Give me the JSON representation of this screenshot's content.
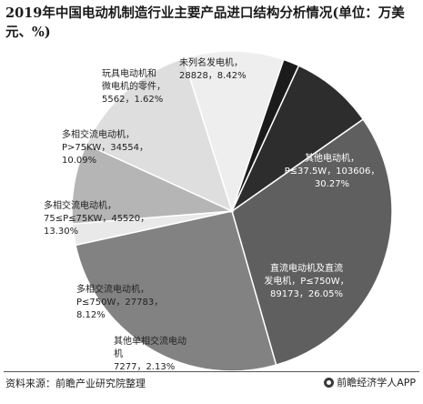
{
  "title": "2019年中国电动机制造行业主要产品进口结构分析情况(单位：万美元、%)",
  "chart_data": {
    "type": "pie",
    "title": "2019年中国电动机制造行业主要产品进口结构分析情况(单位：万美元、%)",
    "unit": "万美元、%",
    "slices": [
      {
        "label": [
          "其他电动机，",
          "P≤37.5W，103606，",
          "30.27%"
        ],
        "value": 103606,
        "percent": 30.27,
        "color": "#5f5f5f",
        "text_color": "#ffffff"
      },
      {
        "label": [
          "直流电动机及直流",
          "发电机，P≤750W，",
          "89173，26.05%"
        ],
        "value": 89173,
        "percent": 26.05,
        "color": "#828282",
        "text_color": "#ffffff"
      },
      {
        "label": [
          "其他单相交流电动",
          "机",
          "7277，2.13%"
        ],
        "value": 7277,
        "percent": 2.13,
        "color": "#e9e9e9",
        "text_color": "#222222"
      },
      {
        "label": [
          "多相交流电动机，",
          "P≤750W，27783，",
          "8.12%"
        ],
        "value": 27783,
        "percent": 8.12,
        "color": "#b5b5b5",
        "text_color": "#222222"
      },
      {
        "label": [
          "多相交流电动机，",
          "75≤P≤75KW，45520，",
          "13.30%"
        ],
        "value": 45520,
        "percent": 13.3,
        "color": "#dedede",
        "text_color": "#222222"
      },
      {
        "label": [
          "多相交流电动机，",
          "P>75KW，34554，",
          "10.09%"
        ],
        "value": 34554,
        "percent": 10.09,
        "color": "#eeeeee",
        "text_color": "#222222"
      },
      {
        "label": [
          "玩具电动机和",
          "微电机的零件，",
          "5562，1.62%"
        ],
        "value": 5562,
        "percent": 1.62,
        "color": "#1b1b1b",
        "text_color": "#222222"
      },
      {
        "label": [
          "未列名发电机，",
          "28828，8.42%"
        ],
        "value": 28828,
        "percent": 8.42,
        "color": "#2d2d2d",
        "text_color": "#222222"
      }
    ]
  },
  "footer": {
    "source": "资料来源：前瞻产业研究院整理",
    "brand": "前瞻经济学人APP",
    "brand_icon": "qianzhan-logo-icon"
  }
}
